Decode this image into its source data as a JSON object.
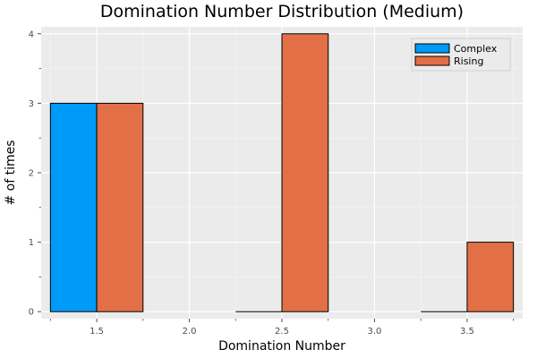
{
  "chart_data": {
    "type": "bar",
    "title": "Domination Number Distribution (Medium)",
    "xlabel": "Domination Number",
    "ylabel": "# of times",
    "xlim": [
      1.2,
      3.8
    ],
    "ylim": [
      -0.1,
      4.1
    ],
    "xticks": [
      1.5,
      2.0,
      2.5,
      3.0,
      3.5
    ],
    "yticks": [
      0,
      1,
      2,
      3,
      4
    ],
    "bar_width": 0.25,
    "grid": true,
    "legend_position": "top-right",
    "series": [
      {
        "name": "Complex",
        "color": "#009af9",
        "x": [
          1.375,
          2.375,
          3.375
        ],
        "values": [
          3,
          0,
          0
        ]
      },
      {
        "name": "Rising",
        "color": "#e26f46",
        "x": [
          1.625,
          2.625,
          3.625
        ],
        "values": [
          3,
          4,
          1
        ]
      }
    ]
  }
}
